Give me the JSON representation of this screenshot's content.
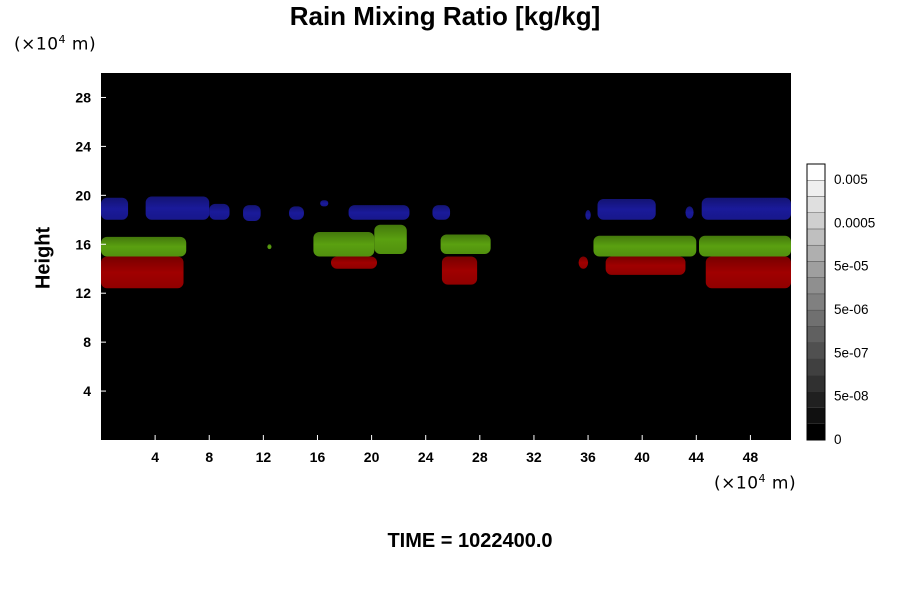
{
  "chart_data": {
    "type": "heatmap",
    "title": "Rain Mixing Ratio [kg/kg]",
    "ylabel": "Height",
    "x_unit_prefix": "(×10",
    "x_unit_exp": "4",
    "x_unit_suffix": " m)",
    "y_unit_prefix": "(×10",
    "y_unit_exp": "4",
    "y_unit_suffix": " m)",
    "xlim": [
      0,
      51
    ],
    "ylim": [
      0,
      30
    ],
    "x_ticks": [
      4,
      8,
      12,
      16,
      20,
      24,
      28,
      32,
      36,
      40,
      44,
      48
    ],
    "y_ticks": [
      4,
      8,
      12,
      16,
      20,
      24,
      28
    ],
    "background_color": "#000000",
    "colorbar": {
      "labels": [
        "0",
        "5e-08",
        "5e-07",
        "5e-06",
        "5e-05",
        "0.0005",
        "0.005"
      ],
      "level_count": 17,
      "colors": [
        "#000000",
        "#ffffff"
      ]
    },
    "bands": [
      {
        "name": "upper",
        "color": "#1a1a9a",
        "segments": [
          {
            "x": [
              0.0,
              2.0
            ],
            "y": [
              18.0,
              19.8
            ]
          },
          {
            "x": [
              3.3,
              8.0
            ],
            "y": [
              18.0,
              19.9
            ]
          },
          {
            "x": [
              8.0,
              9.5
            ],
            "y": [
              18.0,
              19.3
            ]
          },
          {
            "x": [
              10.5,
              11.8
            ],
            "y": [
              17.9,
              19.2
            ]
          },
          {
            "x": [
              13.9,
              15.0
            ],
            "y": [
              18.0,
              19.1
            ]
          },
          {
            "x": [
              16.2,
              16.8
            ],
            "y": [
              19.1,
              19.6
            ]
          },
          {
            "x": [
              18.3,
              22.8
            ],
            "y": [
              18.0,
              19.2
            ]
          },
          {
            "x": [
              24.5,
              25.8
            ],
            "y": [
              18.0,
              19.2
            ]
          },
          {
            "x": [
              35.8,
              36.2
            ],
            "y": [
              18.0,
              18.8
            ]
          },
          {
            "x": [
              36.7,
              41.0
            ],
            "y": [
              18.0,
              19.7
            ]
          },
          {
            "x": [
              43.2,
              43.8
            ],
            "y": [
              18.1,
              19.1
            ]
          },
          {
            "x": [
              44.4,
              51.0
            ],
            "y": [
              18.0,
              19.8
            ]
          }
        ]
      },
      {
        "name": "middle",
        "color": "#5aa010",
        "segments": [
          {
            "x": [
              0.0,
              6.3
            ],
            "y": [
              15.0,
              16.6
            ]
          },
          {
            "x": [
              12.3,
              12.6
            ],
            "y": [
              15.6,
              16.0
            ]
          },
          {
            "x": [
              15.7,
              20.2
            ],
            "y": [
              15.0,
              17.0
            ]
          },
          {
            "x": [
              20.2,
              22.6
            ],
            "y": [
              15.2,
              17.6
            ]
          },
          {
            "x": [
              25.1,
              28.8
            ],
            "y": [
              15.2,
              16.8
            ]
          },
          {
            "x": [
              36.4,
              44.0
            ],
            "y": [
              15.0,
              16.7
            ]
          },
          {
            "x": [
              44.2,
              51.0
            ],
            "y": [
              15.0,
              16.7
            ]
          }
        ]
      },
      {
        "name": "lower",
        "color": "#a00000",
        "segments": [
          {
            "x": [
              0.0,
              6.1
            ],
            "y": [
              12.4,
              15.0
            ]
          },
          {
            "x": [
              17.0,
              20.4
            ],
            "y": [
              14.0,
              15.0
            ]
          },
          {
            "x": [
              25.2,
              27.8
            ],
            "y": [
              12.7,
              15.0
            ]
          },
          {
            "x": [
              35.3,
              36.0
            ],
            "y": [
              14.0,
              15.0
            ]
          },
          {
            "x": [
              37.3,
              43.2
            ],
            "y": [
              13.5,
              15.0
            ]
          },
          {
            "x": [
              44.7,
              51.0
            ],
            "y": [
              12.4,
              15.0
            ]
          }
        ]
      }
    ],
    "time_label": "TIME = 1022400.0"
  }
}
